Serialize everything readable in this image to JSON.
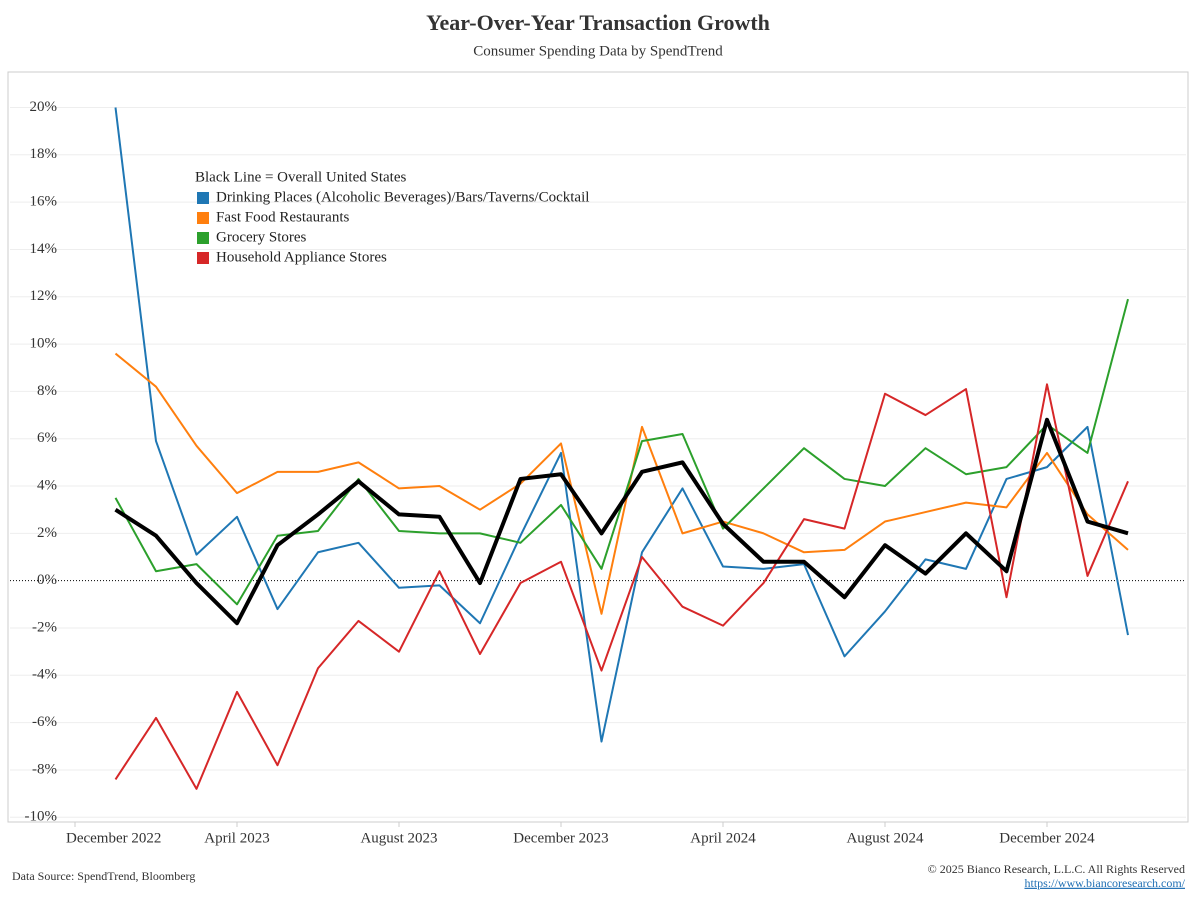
{
  "chart_data": {
    "type": "line",
    "title": "Year-Over-Year Transaction Growth",
    "subtitle": "Consumer Spending Data by SpendTrend",
    "legend_note": "Black Line = Overall United States",
    "x": [
      "2023-01",
      "2023-02",
      "2023-03",
      "2023-04",
      "2023-05",
      "2023-06",
      "2023-07",
      "2023-08",
      "2023-09",
      "2023-10",
      "2023-11",
      "2023-12",
      "2024-01",
      "2024-02",
      "2024-03",
      "2024-04",
      "2024-05",
      "2024-06",
      "2024-07",
      "2024-08",
      "2024-09",
      "2024-10",
      "2024-11",
      "2024-12",
      "2025-01",
      "2025-02"
    ],
    "xlim": [
      "2022-11",
      "2025-03"
    ],
    "xticks": [
      {
        "value": "2022-12",
        "label": "December 2022"
      },
      {
        "value": "2023-04",
        "label": "April 2023"
      },
      {
        "value": "2023-08",
        "label": "August 2023"
      },
      {
        "value": "2023-12",
        "label": "December 2023"
      },
      {
        "value": "2024-04",
        "label": "April 2024"
      },
      {
        "value": "2024-08",
        "label": "August 2024"
      },
      {
        "value": "2024-12",
        "label": "December 2024"
      }
    ],
    "ylim": [
      -10.2,
      21.5
    ],
    "yticks": [
      {
        "value": -10,
        "label": "-10%"
      },
      {
        "value": -8,
        "label": "-8%"
      },
      {
        "value": -6,
        "label": "-6%"
      },
      {
        "value": -4,
        "label": "-4%"
      },
      {
        "value": -2,
        "label": "-2%"
      },
      {
        "value": 0,
        "label": "0%"
      },
      {
        "value": 2,
        "label": "2%"
      },
      {
        "value": 4,
        "label": "4%"
      },
      {
        "value": 6,
        "label": "6%"
      },
      {
        "value": 8,
        "label": "8%"
      },
      {
        "value": 10,
        "label": "10%"
      },
      {
        "value": 12,
        "label": "12%"
      },
      {
        "value": 14,
        "label": "14%"
      },
      {
        "value": 16,
        "label": "16%"
      },
      {
        "value": 18,
        "label": "18%"
      },
      {
        "value": 20,
        "label": "20%"
      }
    ],
    "grid": true,
    "series": [
      {
        "name": "Drinking Places (Alcoholic Beverages)/Bars/Taverns/Cocktail",
        "color": "#1f77b4",
        "values": [
          20.0,
          5.9,
          1.1,
          2.7,
          -1.2,
          1.2,
          1.6,
          -0.3,
          -0.2,
          -1.8,
          1.9,
          5.4,
          -6.8,
          1.2,
          3.9,
          0.6,
          0.5,
          0.7,
          -3.2,
          -1.3,
          0.9,
          0.5,
          4.3,
          4.8,
          6.5,
          -2.3
        ]
      },
      {
        "name": "Fast Food Restaurants",
        "color": "#ff7f0e",
        "values": [
          9.6,
          8.2,
          5.7,
          3.7,
          4.6,
          4.6,
          5.0,
          3.9,
          4.0,
          3.0,
          4.1,
          5.8,
          -1.4,
          6.5,
          2.0,
          2.5,
          2.0,
          1.2,
          1.3,
          2.5,
          2.9,
          3.3,
          3.1,
          5.4,
          2.8,
          1.3
        ]
      },
      {
        "name": "Grocery Stores",
        "color": "#2ca02c",
        "values": [
          3.5,
          0.4,
          0.7,
          -1.0,
          1.9,
          2.1,
          4.3,
          2.1,
          2.0,
          2.0,
          1.6,
          3.2,
          0.5,
          5.9,
          6.2,
          2.2,
          3.9,
          5.6,
          4.3,
          4.0,
          5.6,
          4.5,
          4.8,
          6.6,
          5.4,
          11.9
        ]
      },
      {
        "name": "Household Appliance Stores",
        "color": "#d62728",
        "values": [
          -8.4,
          -5.8,
          -8.8,
          -4.7,
          -7.8,
          -3.7,
          -1.7,
          -3.0,
          0.4,
          -3.1,
          -0.1,
          0.8,
          -3.8,
          1.0,
          -1.1,
          -1.9,
          -0.1,
          2.6,
          2.2,
          7.9,
          7.0,
          8.1,
          -0.7,
          8.3,
          0.2,
          4.2
        ]
      }
    ],
    "overall": {
      "color": "#000000",
      "values": [
        3.0,
        1.9,
        -0.1,
        -1.8,
        1.5,
        2.8,
        4.2,
        2.8,
        2.7,
        -0.1,
        4.3,
        4.5,
        2.0,
        4.6,
        5.0,
        2.4,
        0.8,
        0.8,
        -0.7,
        1.5,
        0.3,
        2.0,
        0.4,
        6.8,
        2.5,
        2.0
      ]
    },
    "source": "Data Source: SpendTrend, Bloomberg",
    "copyright": "© 2025 Bianco Research, L.L.C. All Rights Reserved",
    "url": "https://www.biancoresearch.com/"
  }
}
